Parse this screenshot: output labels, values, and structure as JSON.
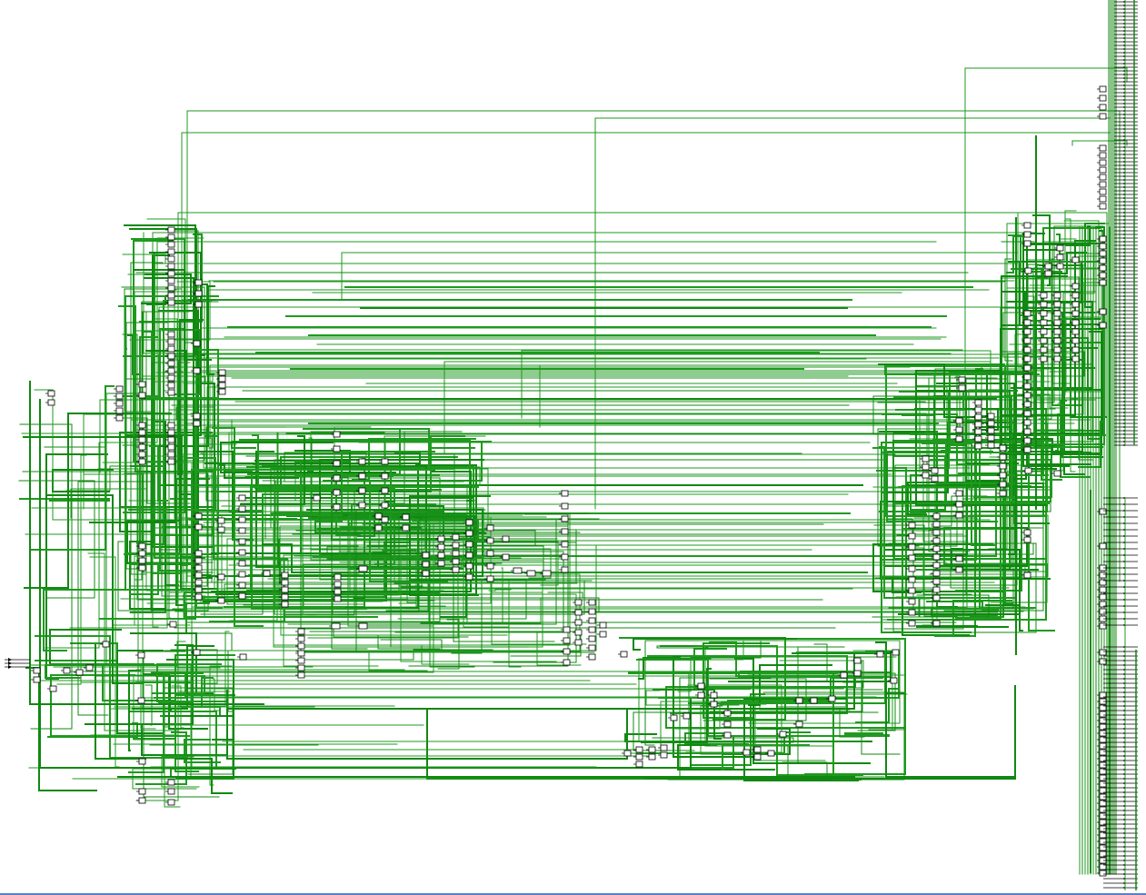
{
  "view": {
    "kind": "gate-level schematic netlist view",
    "colors": {
      "background": "#ffffff",
      "wire": "#1f9a1f",
      "wire_dark": "#118811",
      "cell_fill": "#ffffff",
      "cell_stroke": "#000000",
      "port_stroke": "#000000",
      "bottom_rule": "#5b7fc4"
    }
  }
}
